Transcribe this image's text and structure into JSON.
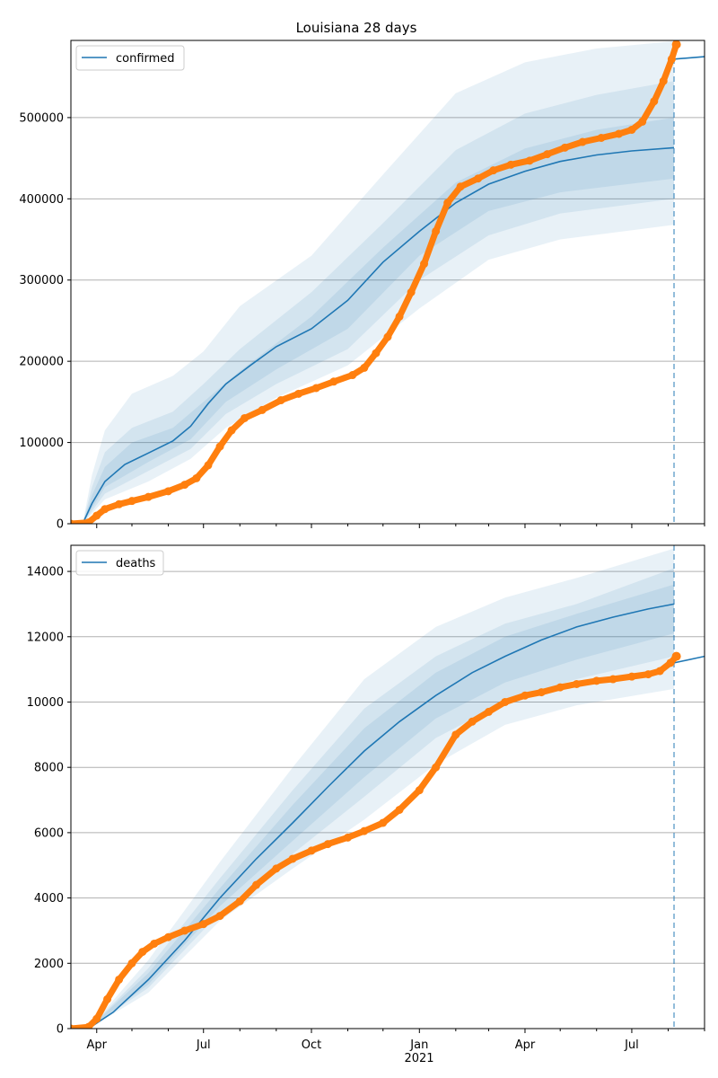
{
  "title": "Louisiana 28 days",
  "colors": {
    "model": "#1f77b4",
    "observed": "#ff7f0e",
    "band": "#1f77b4",
    "grid": "#b0b0b0"
  },
  "x_axis": {
    "type": "date",
    "range": [
      "2020-03-10",
      "2021-09-01"
    ],
    "ticks": [
      {
        "date": "2020-04-01",
        "label": "Apr"
      },
      {
        "date": "2020-07-01",
        "label": "Jul"
      },
      {
        "date": "2020-10-01",
        "label": "Oct"
      },
      {
        "date": "2021-01-01",
        "label": "Jan"
      },
      {
        "date": "2021-04-01",
        "label": "Apr"
      },
      {
        "date": "2021-07-01",
        "label": "Jul"
      }
    ],
    "year_label": "2021",
    "forecast_start": "2021-08-06"
  },
  "chart_data": [
    {
      "type": "line",
      "legend": "confirmed",
      "legend_position": "top-left",
      "grid": "horizontal",
      "ylim": [
        0,
        595000
      ],
      "yticks": [
        0,
        100000,
        200000,
        300000,
        400000,
        500000
      ],
      "ytick_labels": [
        "0",
        "100000",
        "200000",
        "300000",
        "400000",
        "500000"
      ],
      "model_median": [
        [
          "2020-03-20",
          0
        ],
        [
          "2020-03-28",
          25000
        ],
        [
          "2020-04-08",
          52000
        ],
        [
          "2020-04-25",
          73000
        ],
        [
          "2020-05-15",
          87000
        ],
        [
          "2020-06-05",
          102000
        ],
        [
          "2020-06-20",
          120000
        ],
        [
          "2020-07-05",
          148000
        ],
        [
          "2020-07-20",
          172000
        ],
        [
          "2020-08-10",
          195000
        ],
        [
          "2020-09-01",
          218000
        ],
        [
          "2020-10-01",
          240000
        ],
        [
          "2020-11-01",
          275000
        ],
        [
          "2020-12-01",
          322000
        ],
        [
          "2021-01-01",
          360000
        ],
        [
          "2021-02-01",
          395000
        ],
        [
          "2021-03-01",
          418000
        ],
        [
          "2021-04-01",
          434000
        ],
        [
          "2021-05-01",
          446000
        ],
        [
          "2021-06-01",
          454000
        ],
        [
          "2021-07-01",
          459000
        ],
        [
          "2021-08-06",
          463000
        ]
      ],
      "forecast": [
        [
          "2021-08-06",
          572000
        ],
        [
          "2021-09-01",
          575000
        ]
      ],
      "bands": [
        {
          "lower": [
            [
              "2020-03-20",
              0
            ],
            [
              "2020-04-08",
              30000
            ],
            [
              "2020-05-15",
              52000
            ],
            [
              "2020-06-20",
              80000
            ],
            [
              "2020-07-20",
              118000
            ],
            [
              "2020-09-01",
              155000
            ],
            [
              "2020-11-01",
              195000
            ],
            [
              "2021-01-01",
              265000
            ],
            [
              "2021-03-01",
              325000
            ],
            [
              "2021-05-01",
              350000
            ],
            [
              "2021-08-06",
              368000
            ]
          ],
          "upper": [
            [
              "2020-03-20",
              0
            ],
            [
              "2020-03-28",
              60000
            ],
            [
              "2020-04-08",
              115000
            ],
            [
              "2020-05-01",
              160000
            ],
            [
              "2020-06-05",
              182000
            ],
            [
              "2020-07-01",
              212000
            ],
            [
              "2020-08-01",
              268000
            ],
            [
              "2020-10-01",
              330000
            ],
            [
              "2020-12-01",
              430000
            ],
            [
              "2021-02-01",
              530000
            ],
            [
              "2021-04-01",
              568000
            ],
            [
              "2021-06-01",
              585000
            ],
            [
              "2021-08-06",
              594000
            ]
          ]
        },
        {
          "lower": [
            [
              "2020-03-20",
              0
            ],
            [
              "2020-04-08",
              37000
            ],
            [
              "2020-05-15",
              65000
            ],
            [
              "2020-06-20",
              92000
            ],
            [
              "2020-07-20",
              135000
            ],
            [
              "2020-09-01",
              172000
            ],
            [
              "2020-11-01",
              215000
            ],
            [
              "2021-01-01",
              300000
            ],
            [
              "2021-03-01",
              355000
            ],
            [
              "2021-05-01",
              382000
            ],
            [
              "2021-08-06",
              400000
            ]
          ],
          "upper": [
            [
              "2020-03-20",
              0
            ],
            [
              "2020-03-28",
              45000
            ],
            [
              "2020-04-08",
              88000
            ],
            [
              "2020-05-01",
              118000
            ],
            [
              "2020-06-05",
              138000
            ],
            [
              "2020-07-01",
              172000
            ],
            [
              "2020-08-01",
              215000
            ],
            [
              "2020-10-01",
              285000
            ],
            [
              "2020-12-01",
              370000
            ],
            [
              "2021-02-01",
              460000
            ],
            [
              "2021-04-01",
              505000
            ],
            [
              "2021-06-01",
              528000
            ],
            [
              "2021-08-06",
              545000
            ]
          ]
        },
        {
          "lower": [
            [
              "2020-03-20",
              0
            ],
            [
              "2020-04-08",
              45000
            ],
            [
              "2020-05-15",
              76000
            ],
            [
              "2020-06-20",
              104000
            ],
            [
              "2020-07-20",
              150000
            ],
            [
              "2020-09-01",
              190000
            ],
            [
              "2020-11-01",
              240000
            ],
            [
              "2021-01-01",
              330000
            ],
            [
              "2021-03-01",
              385000
            ],
            [
              "2021-05-01",
              408000
            ],
            [
              "2021-08-06",
              425000
            ]
          ],
          "upper": [
            [
              "2020-03-20",
              0
            ],
            [
              "2020-03-28",
              35000
            ],
            [
              "2020-04-08",
              70000
            ],
            [
              "2020-05-01",
              100000
            ],
            [
              "2020-06-05",
              118000
            ],
            [
              "2020-07-01",
              150000
            ],
            [
              "2020-08-01",
              188000
            ],
            [
              "2020-10-01",
              255000
            ],
            [
              "2020-12-01",
              340000
            ],
            [
              "2021-02-01",
              420000
            ],
            [
              "2021-04-01",
              462000
            ],
            [
              "2021-06-01",
              485000
            ],
            [
              "2021-08-06",
              500000
            ]
          ]
        }
      ],
      "observed": [
        [
          "2020-03-10",
          0
        ],
        [
          "2020-03-25",
          1500
        ],
        [
          "2020-04-01",
          10000
        ],
        [
          "2020-04-08",
          18000
        ],
        [
          "2020-04-20",
          24000
        ],
        [
          "2020-05-01",
          28000
        ],
        [
          "2020-05-15",
          33000
        ],
        [
          "2020-06-01",
          40000
        ],
        [
          "2020-06-15",
          48000
        ],
        [
          "2020-06-25",
          56000
        ],
        [
          "2020-07-05",
          72000
        ],
        [
          "2020-07-15",
          95000
        ],
        [
          "2020-07-25",
          115000
        ],
        [
          "2020-08-05",
          130000
        ],
        [
          "2020-08-20",
          140000
        ],
        [
          "2020-09-05",
          152000
        ],
        [
          "2020-09-20",
          160000
        ],
        [
          "2020-10-05",
          167000
        ],
        [
          "2020-10-20",
          175000
        ],
        [
          "2020-11-05",
          183000
        ],
        [
          "2020-11-15",
          192000
        ],
        [
          "2020-11-25",
          210000
        ],
        [
          "2020-12-05",
          230000
        ],
        [
          "2020-12-15",
          255000
        ],
        [
          "2020-12-25",
          285000
        ],
        [
          "2021-01-05",
          320000
        ],
        [
          "2021-01-15",
          360000
        ],
        [
          "2021-01-25",
          395000
        ],
        [
          "2021-02-05",
          415000
        ],
        [
          "2021-02-20",
          425000
        ],
        [
          "2021-03-05",
          435000
        ],
        [
          "2021-03-20",
          442000
        ],
        [
          "2021-04-05",
          447000
        ],
        [
          "2021-04-20",
          455000
        ],
        [
          "2021-05-05",
          463000
        ],
        [
          "2021-05-20",
          470000
        ],
        [
          "2021-06-05",
          475000
        ],
        [
          "2021-06-20",
          480000
        ],
        [
          "2021-07-01",
          485000
        ],
        [
          "2021-07-10",
          495000
        ],
        [
          "2021-07-20",
          520000
        ],
        [
          "2021-07-28",
          545000
        ],
        [
          "2021-08-04",
          572000
        ],
        [
          "2021-08-08",
          590000
        ]
      ]
    },
    {
      "type": "line",
      "legend": "deaths",
      "legend_position": "top-left",
      "grid": "horizontal",
      "ylim": [
        0,
        14800
      ],
      "yticks": [
        0,
        2000,
        4000,
        6000,
        8000,
        10000,
        12000,
        14000
      ],
      "ytick_labels": [
        "0",
        "2000",
        "4000",
        "6000",
        "8000",
        "10000",
        "12000",
        "14000"
      ],
      "model_median": [
        [
          "2020-03-25",
          0
        ],
        [
          "2020-04-15",
          500
        ],
        [
          "2020-05-15",
          1500
        ],
        [
          "2020-06-15",
          2700
        ],
        [
          "2020-07-15",
          4000
        ],
        [
          "2020-08-15",
          5200
        ],
        [
          "2020-09-15",
          6300
        ],
        [
          "2020-10-15",
          7400
        ],
        [
          "2020-11-15",
          8500
        ],
        [
          "2020-12-15",
          9400
        ],
        [
          "2021-01-15",
          10200
        ],
        [
          "2021-02-15",
          10900
        ],
        [
          "2021-03-15",
          11400
        ],
        [
          "2021-04-15",
          11900
        ],
        [
          "2021-05-15",
          12300
        ],
        [
          "2021-06-15",
          12600
        ],
        [
          "2021-07-15",
          12850
        ],
        [
          "2021-08-06",
          13000
        ]
      ],
      "forecast": [
        [
          "2021-08-06",
          11200
        ],
        [
          "2021-09-01",
          11400
        ]
      ],
      "bands": [
        {
          "lower": [
            [
              "2020-03-25",
              0
            ],
            [
              "2020-05-15",
              1100
            ],
            [
              "2020-07-15",
              3300
            ],
            [
              "2020-09-15",
              4900
            ],
            [
              "2020-11-15",
              6400
            ],
            [
              "2021-01-15",
              8100
            ],
            [
              "2021-03-15",
              9300
            ],
            [
              "2021-05-15",
              9900
            ],
            [
              "2021-08-06",
              10400
            ]
          ],
          "upper": [
            [
              "2020-03-25",
              0
            ],
            [
              "2020-05-15",
              2100
            ],
            [
              "2020-07-15",
              5100
            ],
            [
              "2020-09-15",
              8000
            ],
            [
              "2020-11-15",
              10700
            ],
            [
              "2021-01-15",
              12300
            ],
            [
              "2021-03-15",
              13200
            ],
            [
              "2021-05-15",
              13800
            ],
            [
              "2021-08-06",
              14700
            ]
          ]
        },
        {
          "lower": [
            [
              "2020-03-25",
              0
            ],
            [
              "2020-05-15",
              1250
            ],
            [
              "2020-07-15",
              3550
            ],
            [
              "2020-09-15",
              5350
            ],
            [
              "2020-11-15",
              7100
            ],
            [
              "2021-01-15",
              8900
            ],
            [
              "2021-03-15",
              10000
            ],
            [
              "2021-05-15",
              10700
            ],
            [
              "2021-08-06",
              11400
            ]
          ],
          "upper": [
            [
              "2020-03-25",
              0
            ],
            [
              "2020-05-15",
              1850
            ],
            [
              "2020-07-15",
              4600
            ],
            [
              "2020-09-15",
              7300
            ],
            [
              "2020-11-15",
              9800
            ],
            [
              "2021-01-15",
              11400
            ],
            [
              "2021-03-15",
              12400
            ],
            [
              "2021-05-15",
              13000
            ],
            [
              "2021-08-06",
              14100
            ]
          ]
        },
        {
          "lower": [
            [
              "2020-03-25",
              0
            ],
            [
              "2020-05-15",
              1350
            ],
            [
              "2020-07-15",
              3750
            ],
            [
              "2020-09-15",
              5750
            ],
            [
              "2020-11-15",
              7700
            ],
            [
              "2021-01-15",
              9500
            ],
            [
              "2021-03-15",
              10600
            ],
            [
              "2021-05-15",
              11300
            ],
            [
              "2021-08-06",
              12100
            ]
          ],
          "upper": [
            [
              "2020-03-25",
              0
            ],
            [
              "2020-05-15",
              1700
            ],
            [
              "2020-07-15",
              4300
            ],
            [
              "2020-09-15",
              6850
            ],
            [
              "2020-11-15",
              9200
            ],
            [
              "2021-01-15",
              10900
            ],
            [
              "2021-03-15",
              12000
            ],
            [
              "2021-05-15",
              12700
            ],
            [
              "2021-08-06",
              13600
            ]
          ]
        }
      ],
      "observed": [
        [
          "2020-03-10",
          0
        ],
        [
          "2020-03-25",
          50
        ],
        [
          "2020-04-01",
          300
        ],
        [
          "2020-04-10",
          900
        ],
        [
          "2020-04-20",
          1500
        ],
        [
          "2020-05-01",
          2000
        ],
        [
          "2020-05-10",
          2350
        ],
        [
          "2020-05-20",
          2600
        ],
        [
          "2020-06-01",
          2800
        ],
        [
          "2020-06-15",
          3000
        ],
        [
          "2020-07-01",
          3200
        ],
        [
          "2020-07-15",
          3450
        ],
        [
          "2020-08-01",
          3900
        ],
        [
          "2020-08-15",
          4400
        ],
        [
          "2020-09-01",
          4900
        ],
        [
          "2020-09-15",
          5200
        ],
        [
          "2020-10-01",
          5450
        ],
        [
          "2020-10-15",
          5650
        ],
        [
          "2020-11-01",
          5850
        ],
        [
          "2020-11-15",
          6050
        ],
        [
          "2020-12-01",
          6300
        ],
        [
          "2020-12-15",
          6700
        ],
        [
          "2021-01-01",
          7300
        ],
        [
          "2021-01-15",
          8000
        ],
        [
          "2021-02-01",
          9000
        ],
        [
          "2021-02-15",
          9400
        ],
        [
          "2021-03-01",
          9700
        ],
        [
          "2021-03-15",
          10000
        ],
        [
          "2021-04-01",
          10200
        ],
        [
          "2021-04-15",
          10300
        ],
        [
          "2021-05-01",
          10450
        ],
        [
          "2021-05-15",
          10550
        ],
        [
          "2021-06-01",
          10650
        ],
        [
          "2021-06-15",
          10700
        ],
        [
          "2021-07-01",
          10780
        ],
        [
          "2021-07-15",
          10850
        ],
        [
          "2021-07-25",
          10950
        ],
        [
          "2021-08-03",
          11200
        ],
        [
          "2021-08-08",
          11400
        ]
      ]
    }
  ]
}
